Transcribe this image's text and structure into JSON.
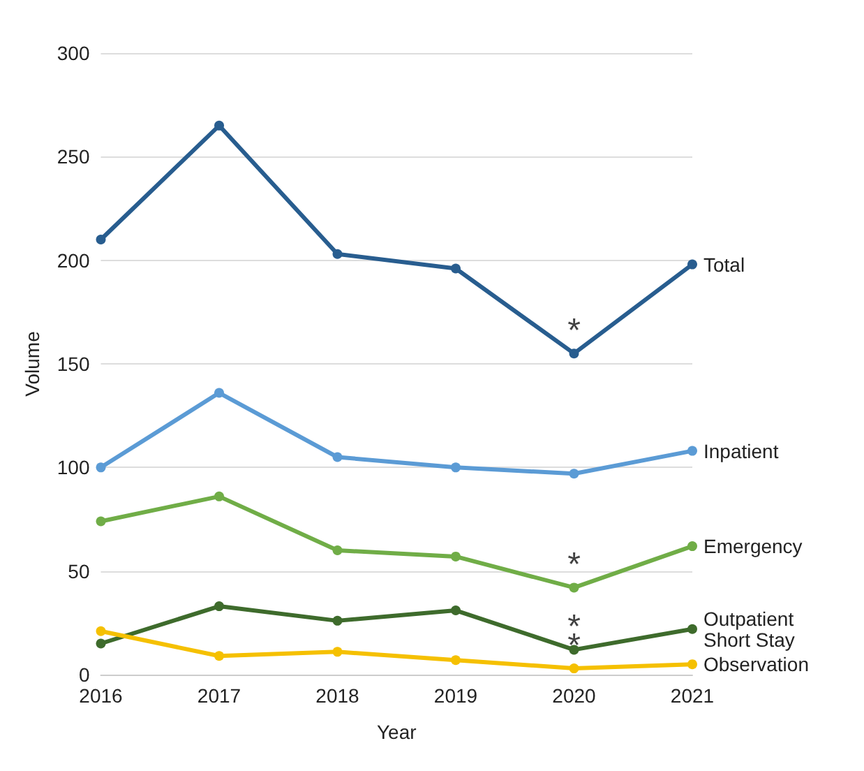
{
  "chart_data": {
    "type": "line",
    "xlabel": "Year",
    "ylabel": "Volume",
    "categories": [
      "2016",
      "2017",
      "2018",
      "2019",
      "2020",
      "2021"
    ],
    "series": [
      {
        "name": "Total",
        "color": "#285d8f",
        "values": [
          210,
          265,
          203,
          196,
          155,
          198
        ]
      },
      {
        "name": "Inpatient",
        "color": "#5b9bd5",
        "values": [
          100,
          136,
          105,
          100,
          97,
          108
        ]
      },
      {
        "name": "Emergency",
        "color": "#70ad47",
        "values": [
          74,
          86,
          60,
          57,
          42,
          62
        ]
      },
      {
        "name": "Outpatient Short Stay",
        "color": "#3e6b2c",
        "values": [
          15,
          33,
          26,
          31,
          12,
          22
        ]
      },
      {
        "name": "Observation",
        "color": "#f5c000",
        "values": [
          21,
          9,
          11,
          7,
          3,
          5
        ]
      }
    ],
    "annotations": [
      {
        "text": "*",
        "x": "2020",
        "y": 155
      },
      {
        "text": "*",
        "x": "2020",
        "y": 42
      },
      {
        "text": "*",
        "x": "2020",
        "y": 12
      },
      {
        "text": "*",
        "x": "2020",
        "y": 3
      }
    ],
    "ylim": [
      0,
      300
    ],
    "yticks": [
      0,
      50,
      100,
      150,
      200,
      250,
      300
    ],
    "grid": "y",
    "legend": false,
    "marker": "circle",
    "line_style": "solid"
  }
}
